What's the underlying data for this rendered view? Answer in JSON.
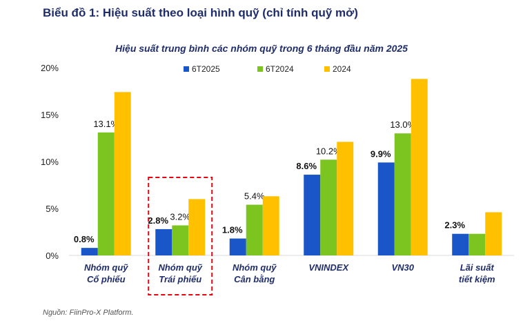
{
  "header": {
    "title": "Biểu đồ 1: Hiệu suất theo loại hình quỹ (chỉ tính quỹ mở)"
  },
  "source": "Nguồn: FiinPro-X Platform.",
  "colors": {
    "6T2025": "#1a56c8",
    "6T2024": "#7cc520",
    "2024": "#ffc000",
    "highlight_border": "#e8000b"
  },
  "chart_data": {
    "type": "bar",
    "title": "Hiệu suất trung bình các nhóm quỹ trong 6 tháng đầu năm 2025",
    "xlabel": "",
    "ylabel": "",
    "ylim": [
      0,
      20
    ],
    "yticks": [
      "0%",
      "5%",
      "10%",
      "15%",
      "20%"
    ],
    "ytick_values": [
      0,
      5,
      10,
      15,
      20
    ],
    "grid": false,
    "legend_position": "top",
    "categories": [
      [
        "Nhóm quỹ",
        "Cổ phiếu"
      ],
      [
        "Nhóm quỹ",
        "Trái phiếu"
      ],
      [
        "Nhóm quỹ",
        "Cân bằng"
      ],
      [
        "VNINDEX"
      ],
      [
        "VN30"
      ],
      [
        "Lãi suất",
        "tiết kiệm"
      ]
    ],
    "highlighted_category": 1,
    "series": [
      {
        "name": "6T2025",
        "values": [
          0.8,
          2.8,
          1.8,
          8.6,
          9.9,
          2.3
        ],
        "labels": [
          "0.8%",
          "2.8%",
          "1.8%",
          "8.6%",
          "9.9%",
          "2.3%"
        ]
      },
      {
        "name": "6T2024",
        "values": [
          13.1,
          3.2,
          5.4,
          10.2,
          13.0,
          2.3
        ],
        "labels": [
          "13.1%",
          "3.2%",
          "5.4%",
          "10.2%",
          "13.0%",
          ""
        ]
      },
      {
        "name": "2024",
        "values": [
          17.4,
          6.0,
          6.3,
          12.1,
          18.8,
          4.6
        ],
        "labels": [
          "",
          "",
          "",
          "",
          "",
          ""
        ]
      }
    ]
  }
}
